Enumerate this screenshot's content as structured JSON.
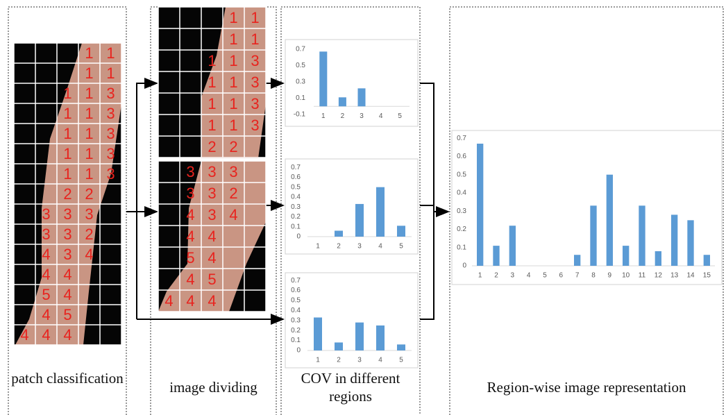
{
  "diagram": {
    "captions": [
      "patch classification",
      "image dividing",
      "COV in different regions",
      "Region-wise image representation"
    ],
    "grid1": [
      [
        null,
        null,
        null,
        1,
        1
      ],
      [
        null,
        null,
        null,
        1,
        1
      ],
      [
        null,
        null,
        1,
        1,
        3
      ],
      [
        null,
        null,
        1,
        1,
        3
      ],
      [
        null,
        null,
        1,
        1,
        3
      ],
      [
        null,
        null,
        1,
        1,
        3
      ],
      [
        null,
        null,
        1,
        1,
        3
      ],
      [
        null,
        null,
        2,
        2,
        null
      ],
      [
        null,
        3,
        3,
        3,
        null
      ],
      [
        null,
        3,
        3,
        2,
        null
      ],
      [
        null,
        4,
        3,
        4,
        null
      ],
      [
        null,
        4,
        4,
        null,
        null
      ],
      [
        null,
        5,
        4,
        null,
        null
      ],
      [
        null,
        4,
        5,
        null,
        null
      ],
      [
        4,
        4,
        4,
        null,
        null
      ]
    ],
    "grid2_top": [
      [
        null,
        null,
        null,
        1,
        1
      ],
      [
        null,
        null,
        null,
        1,
        1
      ],
      [
        null,
        null,
        1,
        1,
        3
      ],
      [
        null,
        null,
        1,
        1,
        3
      ],
      [
        null,
        null,
        1,
        1,
        3
      ],
      [
        null,
        null,
        1,
        1,
        3
      ],
      [
        null,
        null,
        2,
        2,
        null
      ]
    ],
    "grid2_bottom": [
      [
        null,
        3,
        3,
        3,
        null
      ],
      [
        null,
        3,
        3,
        2,
        null
      ],
      [
        null,
        4,
        3,
        4,
        null
      ],
      [
        null,
        4,
        4,
        null,
        null
      ],
      [
        null,
        5,
        4,
        null,
        null
      ],
      [
        null,
        4,
        5,
        null,
        null
      ],
      [
        4,
        4,
        4,
        null,
        null
      ]
    ]
  },
  "chart_data": [
    {
      "type": "bar",
      "categories": [
        1,
        2,
        3,
        4,
        5
      ],
      "values": [
        0.67,
        0.11,
        0.22,
        0,
        0
      ],
      "color": "#5b9bd5",
      "ylim": [
        -0.1,
        0.8
      ],
      "yticks": [
        -0.1,
        0.1,
        0.3,
        0.5,
        0.7
      ]
    },
    {
      "type": "bar",
      "categories": [
        1,
        2,
        3,
        4,
        5
      ],
      "values": [
        0,
        0.06,
        0.33,
        0.5,
        0.11
      ],
      "color": "#5b9bd5",
      "ylim": [
        0,
        0.75
      ],
      "yticks": [
        0,
        0.1,
        0.2,
        0.3,
        0.4,
        0.5,
        0.6,
        0.7
      ]
    },
    {
      "type": "bar",
      "categories": [
        1,
        2,
        3,
        4,
        5
      ],
      "values": [
        0.33,
        0.08,
        0.28,
        0.25,
        0.06
      ],
      "color": "#5b9bd5",
      "ylim": [
        0,
        0.75
      ],
      "yticks": [
        0,
        0.1,
        0.2,
        0.3,
        0.4,
        0.5,
        0.6,
        0.7
      ]
    },
    {
      "type": "bar",
      "categories": [
        1,
        2,
        3,
        4,
        5,
        6,
        7,
        8,
        9,
        10,
        11,
        12,
        13,
        14,
        15
      ],
      "values": [
        0.67,
        0.11,
        0.22,
        0,
        0,
        0,
        0.06,
        0.33,
        0.5,
        0.11,
        0.33,
        0.08,
        0.28,
        0.25,
        0.06
      ],
      "color": "#5b9bd5",
      "ylim": [
        0,
        0.75
      ],
      "yticks": [
        0,
        0.1,
        0.2,
        0.3,
        0.4,
        0.5,
        0.6,
        0.7
      ]
    }
  ]
}
